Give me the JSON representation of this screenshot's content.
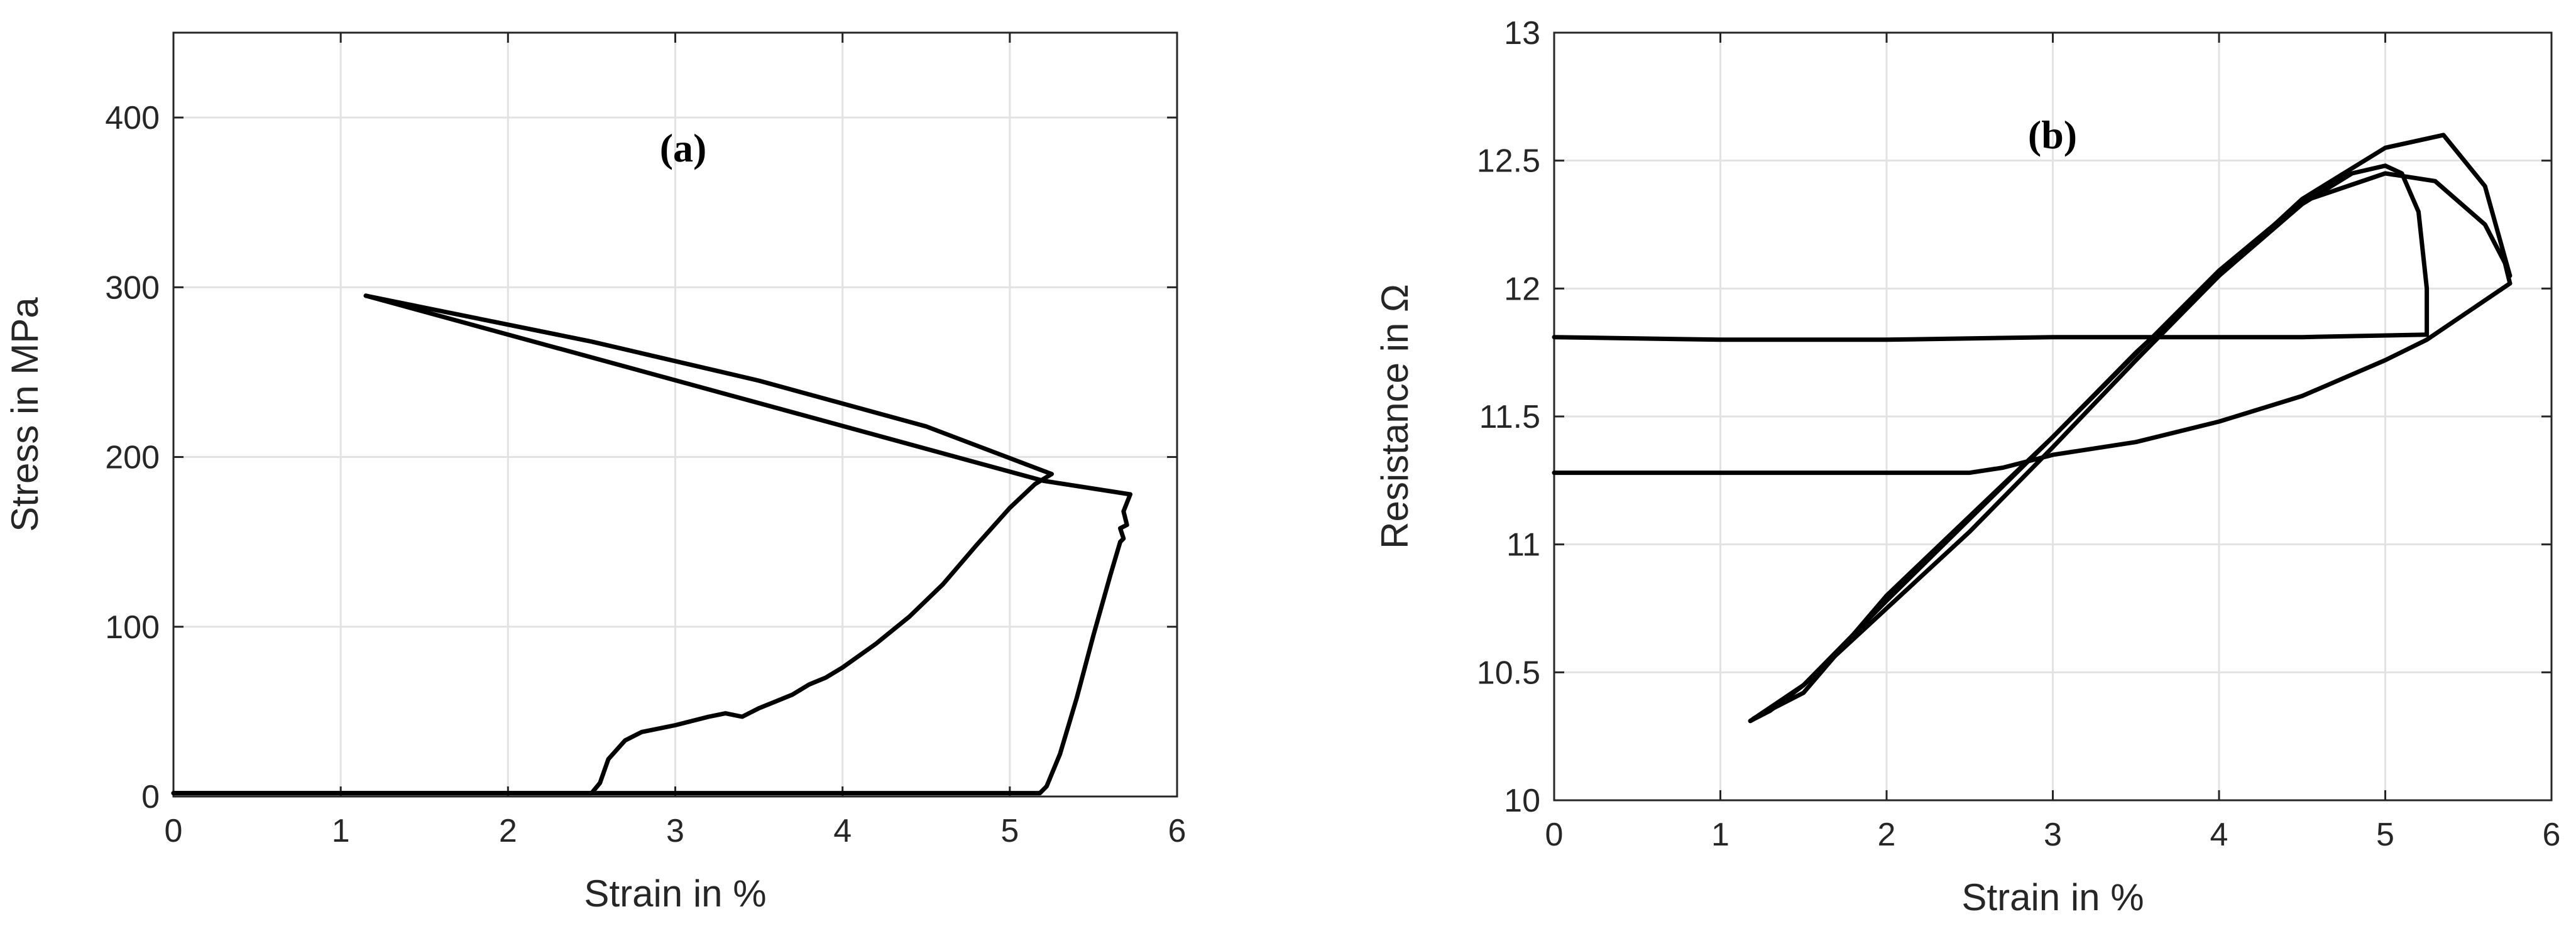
{
  "chart_data": [
    {
      "type": "line",
      "panel_label": "(a)",
      "title": "",
      "xlabel": "Strain in %",
      "ylabel": "Stress in MPa",
      "xlim": [
        0,
        6
      ],
      "ylim": [
        0,
        450
      ],
      "xticks": [
        0,
        1,
        2,
        3,
        4,
        5,
        6
      ],
      "yticks": [
        0,
        100,
        200,
        300,
        400
      ],
      "grid": true,
      "legend": "none",
      "series": [
        {
          "color": "#000000",
          "x": [
            0,
            2.5,
            2.55,
            2.6,
            2.7,
            2.8,
            3.0,
            3.2,
            3.3,
            3.4,
            3.5,
            3.6,
            3.7,
            3.8,
            3.9,
            4.0,
            4.2,
            4.4,
            4.6,
            4.8,
            5.0,
            5.15,
            5.25
          ],
          "y": [
            2,
            2,
            8,
            22,
            33,
            38,
            42,
            47,
            49,
            47,
            52,
            56,
            60,
            66,
            70,
            76,
            90,
            106,
            125,
            148,
            170,
            184,
            190
          ]
        },
        {
          "color": "#000000",
          "x": [
            5.25,
            4.5,
            3.5,
            2.5,
            1.5,
            1.15
          ],
          "y": [
            190,
            218,
            245,
            268,
            288,
            295
          ]
        },
        {
          "color": "#000000",
          "x": [
            1.15,
            5.2,
            5.72
          ],
          "y": [
            295,
            186,
            178
          ]
        },
        {
          "color": "#000000",
          "x": [
            5.72,
            5.68,
            5.7,
            5.66,
            5.68,
            5.66
          ],
          "y": [
            178,
            168,
            160,
            158,
            152,
            150
          ]
        },
        {
          "color": "#000000",
          "x": [
            5.66,
            5.6,
            5.5,
            5.4,
            5.3,
            5.22,
            5.18,
            0
          ],
          "y": [
            150,
            130,
            95,
            58,
            25,
            6,
            2,
            2
          ]
        }
      ]
    },
    {
      "type": "line",
      "panel_label": "(b)",
      "title": "",
      "xlabel": "Strain in %",
      "ylabel": "Resistance in Ω",
      "xlim": [
        0,
        6
      ],
      "ylim": [
        10,
        13
      ],
      "xticks": [
        0,
        1,
        2,
        3,
        4,
        5,
        6
      ],
      "yticks": [
        10,
        10.5,
        11,
        11.5,
        12,
        12.5,
        13
      ],
      "grid": true,
      "legend": "none",
      "series": [
        {
          "color": "#000000",
          "x": [
            0,
            2.5,
            2.7,
            3.0,
            3.5,
            4.0,
            4.5,
            5.0,
            5.25,
            5.75
          ],
          "y": [
            11.28,
            11.28,
            11.3,
            11.35,
            11.4,
            11.48,
            11.58,
            11.72,
            11.8,
            12.02
          ]
        },
        {
          "color": "#000000",
          "x": [
            5.75,
            5.6,
            5.35,
            5.0,
            4.5,
            4.0,
            3.5,
            3.0,
            2.5,
            2.0,
            1.5,
            1.3,
            1.18
          ],
          "y": [
            12.05,
            12.4,
            12.6,
            12.55,
            12.35,
            12.05,
            11.72,
            11.38,
            11.05,
            10.75,
            10.45,
            10.35,
            10.31
          ]
        },
        {
          "color": "#000000",
          "x": [
            1.18,
            1.5,
            2.0,
            2.5,
            3.0,
            3.5,
            4.0,
            4.5,
            4.8,
            5.0,
            5.1,
            5.2,
            5.25,
            5.25
          ],
          "y": [
            10.31,
            10.45,
            10.78,
            11.1,
            11.42,
            11.75,
            12.05,
            12.33,
            12.45,
            12.48,
            12.45,
            12.3,
            12.0,
            11.82
          ]
        },
        {
          "color": "#000000",
          "x": [
            5.25,
            4.5,
            3.0,
            2.0,
            1.0,
            0
          ],
          "y": [
            11.82,
            11.81,
            11.81,
            11.8,
            11.8,
            11.81
          ]
        },
        {
          "color": "#000000",
          "x": [
            1.2,
            1.5,
            2.0,
            3.0,
            4.0,
            4.5,
            5.0,
            5.3,
            5.6,
            5.72,
            5.75
          ],
          "y": [
            10.32,
            10.42,
            10.8,
            11.42,
            12.07,
            12.34,
            12.45,
            12.42,
            12.25,
            12.1,
            12.02
          ]
        }
      ]
    }
  ]
}
